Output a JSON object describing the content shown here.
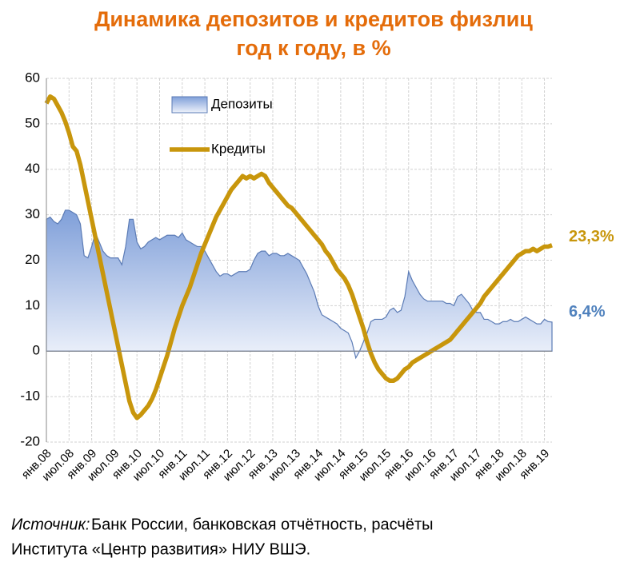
{
  "chart_data": {
    "type": "area_line",
    "title": "Динамика депозитов и кредитов физлиц",
    "subtitle": "год к году, в %",
    "categories": [
      "янв.08",
      null,
      null,
      null,
      null,
      null,
      "июл.08",
      null,
      null,
      null,
      null,
      null,
      "янв.09",
      null,
      null,
      null,
      null,
      null,
      "июл.09",
      null,
      null,
      null,
      null,
      null,
      "янв.10",
      null,
      null,
      null,
      null,
      null,
      "июл.10",
      null,
      null,
      null,
      null,
      null,
      "янв.11",
      null,
      null,
      null,
      null,
      null,
      "июл.11",
      null,
      null,
      null,
      null,
      null,
      "янв.12",
      null,
      null,
      null,
      null,
      null,
      "июл.12",
      null,
      null,
      null,
      null,
      null,
      "янв.13",
      null,
      null,
      null,
      null,
      null,
      "июл.13",
      null,
      null,
      null,
      null,
      null,
      "янв.14",
      null,
      null,
      null,
      null,
      null,
      "июл.14",
      null,
      null,
      null,
      null,
      null,
      "янв.15",
      null,
      null,
      null,
      null,
      null,
      "июл.15",
      null,
      null,
      null,
      null,
      null,
      "янв.16",
      null,
      null,
      null,
      null,
      null,
      "июл.16",
      null,
      null,
      null,
      null,
      null,
      "янв.17",
      null,
      null,
      null,
      null,
      null,
      "июл.17",
      null,
      null,
      null,
      null,
      null,
      "янв.18",
      null,
      null,
      null,
      null,
      null,
      "июл.18",
      null,
      null,
      null,
      null,
      null,
      "янв.19",
      null,
      null
    ],
    "series": [
      {
        "name": "Депозиты",
        "kind": "area",
        "color": "#5b7bb5",
        "end_label": "6,4%",
        "values": [
          29,
          29.5,
          28.5,
          28,
          29,
          31,
          31,
          30.5,
          30,
          28,
          21,
          20.5,
          23,
          26,
          24,
          22,
          21,
          20.5,
          20.5,
          20.5,
          19,
          23,
          29,
          29,
          24,
          22.5,
          23,
          24,
          24.5,
          25,
          24.5,
          25,
          25.5,
          25.5,
          25.5,
          25,
          26,
          24.5,
          24,
          23.5,
          23,
          23,
          22,
          20.5,
          19,
          17.5,
          16.5,
          17,
          17,
          16.5,
          17,
          17.5,
          17.5,
          17.5,
          18,
          20,
          21.5,
          22,
          22,
          21,
          21.5,
          21.5,
          21,
          21,
          21.5,
          21,
          20.5,
          20,
          18.5,
          17,
          15,
          13,
          10,
          8,
          7.5,
          7,
          6.5,
          6,
          5,
          4.5,
          4,
          2,
          -1.5,
          0,
          2,
          4,
          6.5,
          7,
          7,
          7,
          7.5,
          9,
          9.5,
          8.5,
          9,
          12,
          17.5,
          15.5,
          14,
          12.5,
          11.5,
          11,
          11,
          11,
          11,
          11,
          10.5,
          10.5,
          10,
          12,
          12.5,
          11.5,
          10.5,
          9,
          8.5,
          8.5,
          7,
          7,
          6.5,
          6,
          6,
          6.5,
          6.5,
          7,
          6.5,
          6.5,
          7,
          7.5,
          7,
          6.5,
          6,
          6,
          7,
          6.5,
          6.4
        ]
      },
      {
        "name": "Кредиты",
        "kind": "line",
        "color": "#c8960c",
        "end_label": "23,3%",
        "values": [
          54.5,
          56,
          55.5,
          54,
          52.5,
          50.5,
          48,
          45,
          44,
          41,
          37,
          33,
          29,
          25,
          21,
          17,
          13,
          9,
          5,
          1,
          -3,
          -7,
          -11,
          -13.5,
          -14.7,
          -14,
          -13,
          -12,
          -10.5,
          -8.5,
          -6,
          -3.5,
          -1,
          2,
          5,
          7.5,
          10,
          12,
          14,
          16.5,
          19,
          21.5,
          23.5,
          25.5,
          27.5,
          29.5,
          31,
          32.5,
          34,
          35.5,
          36.5,
          37.5,
          38.5,
          38,
          38.5,
          38,
          38.5,
          39,
          38.5,
          37,
          36,
          35,
          34,
          33,
          32,
          31.5,
          30.5,
          29.5,
          28.5,
          27.5,
          26.5,
          25.5,
          24.5,
          23.5,
          22,
          21,
          19.5,
          18,
          17,
          16,
          14.5,
          12.5,
          10,
          7.5,
          5,
          2,
          -0.5,
          -2.5,
          -4,
          -5,
          -6,
          -6.5,
          -6.5,
          -6,
          -5,
          -4,
          -3.5,
          -2.5,
          -2,
          -1.5,
          -1,
          -0.5,
          0,
          0.5,
          1,
          1.5,
          2,
          2.5,
          3.5,
          4.5,
          5.5,
          6.5,
          7.5,
          8.5,
          9.5,
          10.5,
          12,
          13,
          14,
          15,
          16,
          17,
          18,
          19,
          20,
          21,
          21.5,
          22,
          22,
          22.5,
          22,
          22.5,
          23,
          23,
          23.3
        ]
      }
    ],
    "ylim": [
      -20,
      60
    ],
    "yticks": [
      -20,
      -10,
      0,
      10,
      20,
      30,
      40,
      50,
      60
    ],
    "grid": true,
    "source_label": "Источник:",
    "source_text": "Банк России, банковская отчётность, расчёты",
    "source_text2": "Института «Центр развития» НИУ ВШЭ."
  }
}
